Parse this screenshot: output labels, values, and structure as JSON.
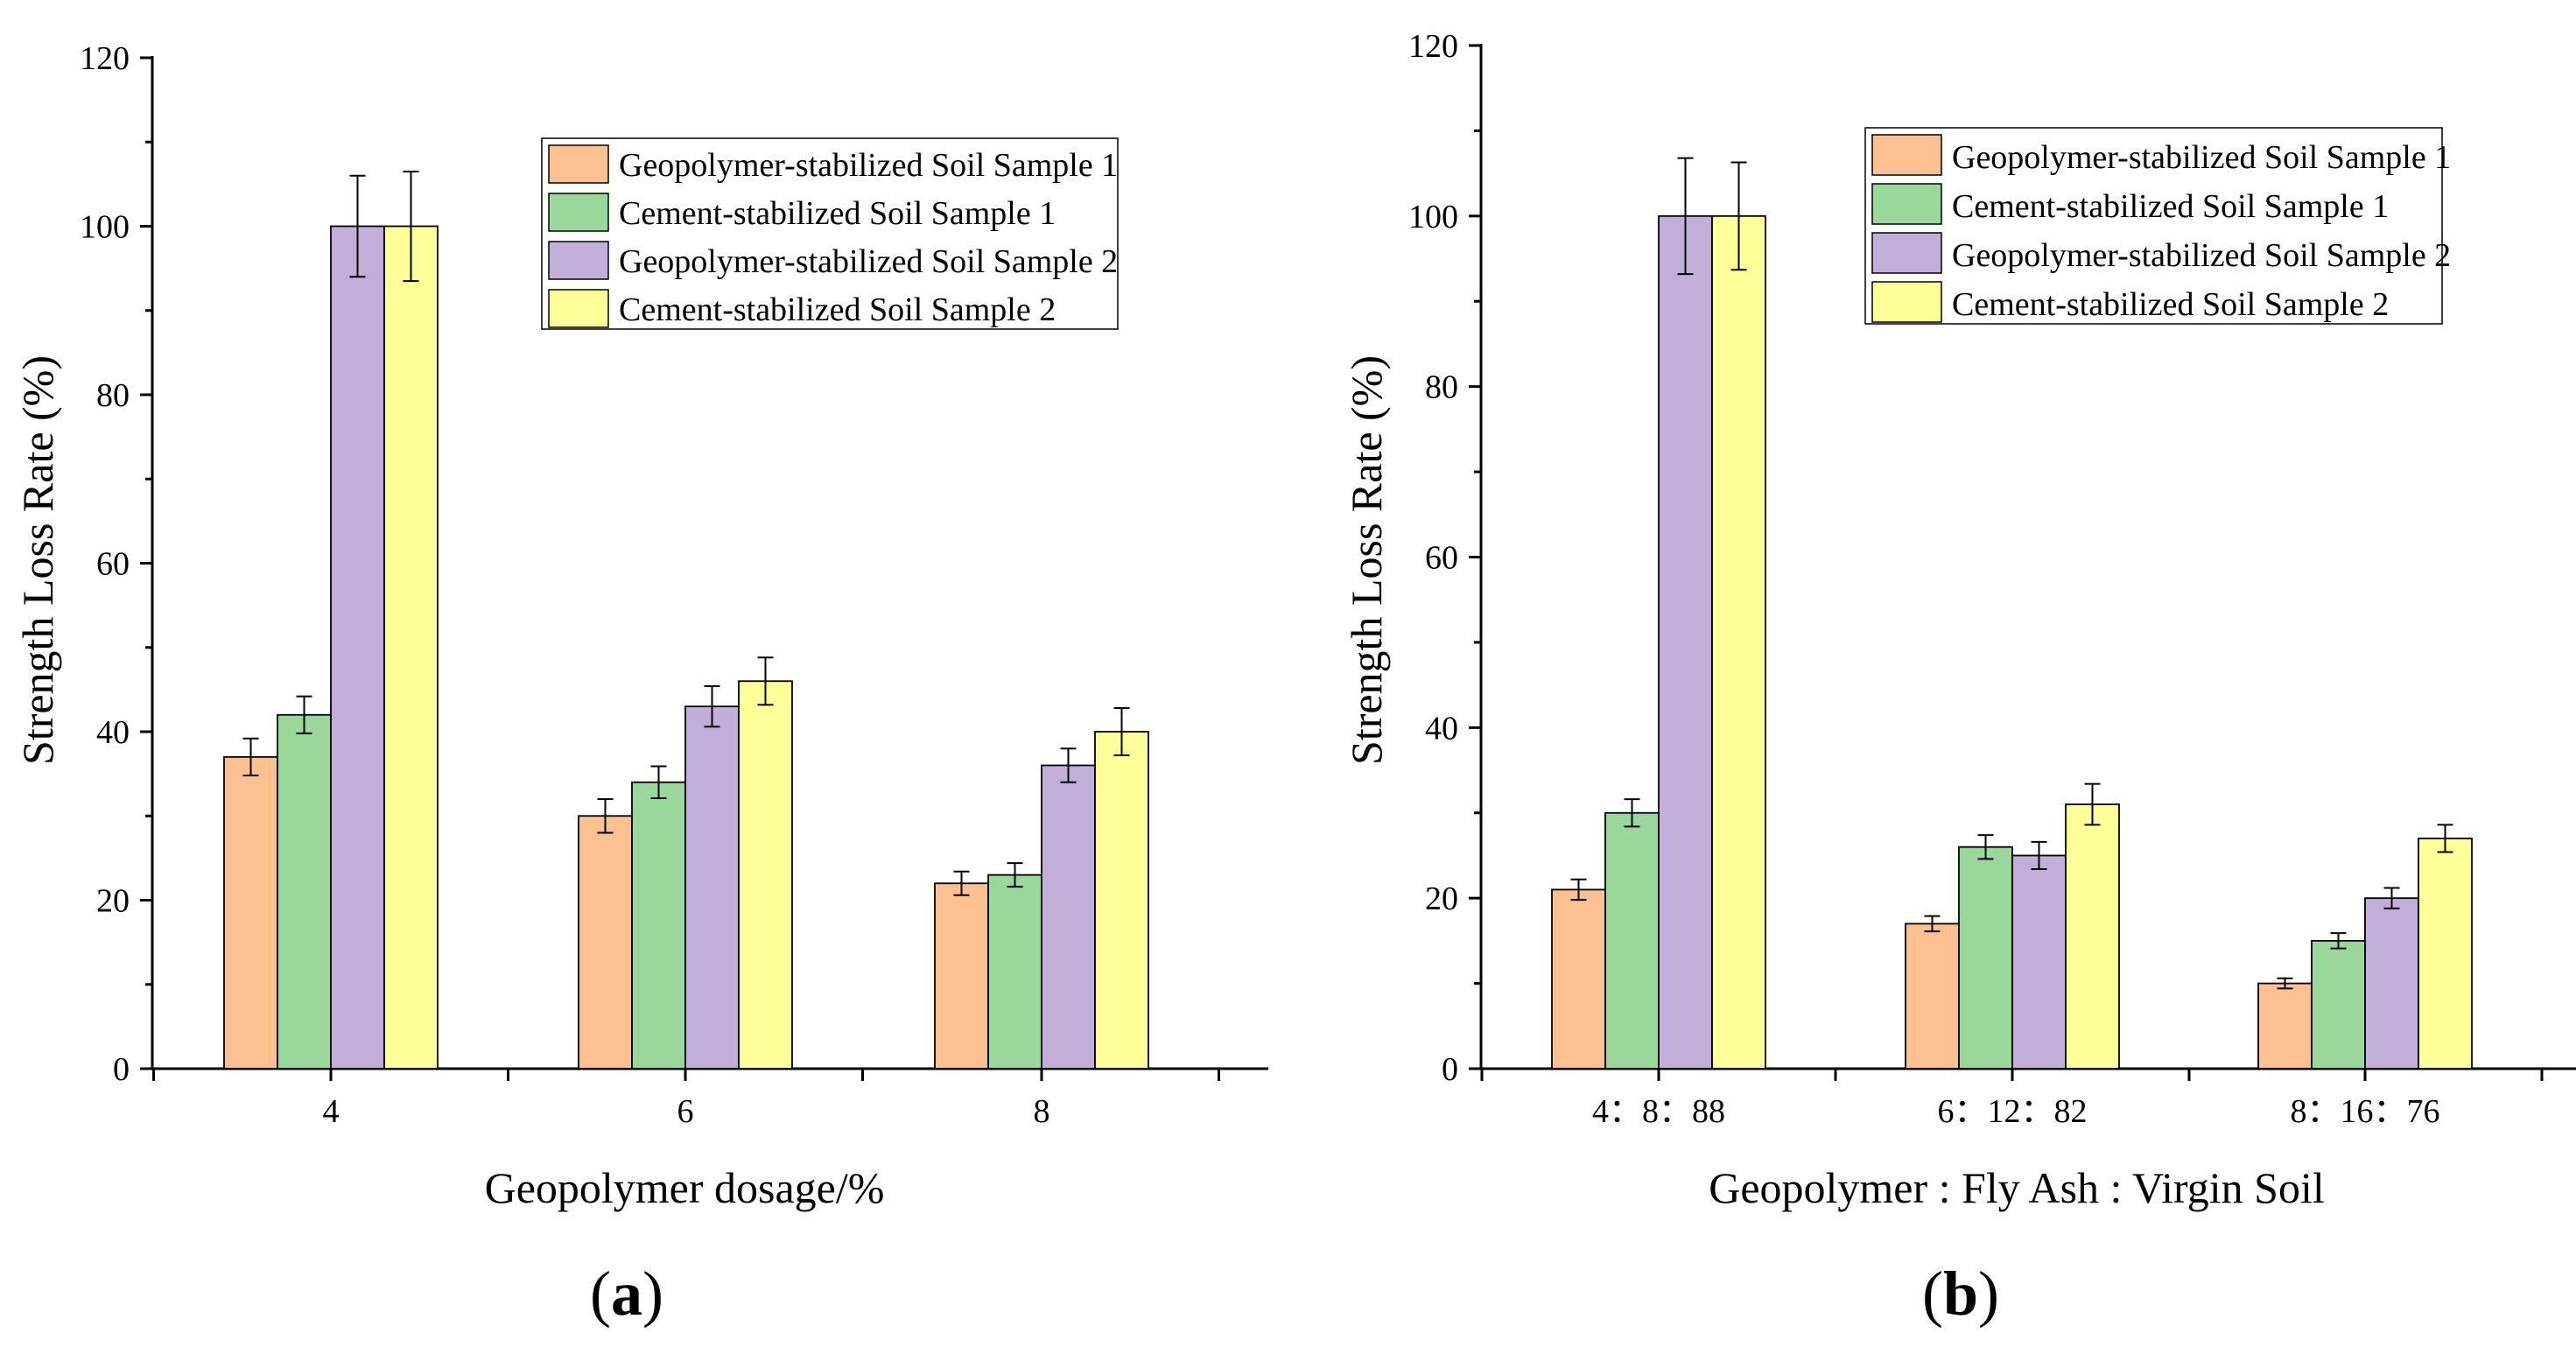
{
  "colors": {
    "series": [
      "#FDC091",
      "#99D79B",
      "#C1AFD9",
      "#FFFF99"
    ],
    "bar_stroke": "#000000",
    "axis": "#000000"
  },
  "chart_data": [
    {
      "type": "bar",
      "panel_label": "a",
      "xlabel": "Geopolymer dosage/%",
      "ylabel": "Strength Loss Rate (%)",
      "ylim": [
        0,
        120
      ],
      "yticks": [
        "0",
        "20",
        "40",
        "60",
        "80",
        "100",
        "120"
      ],
      "categories": [
        "4",
        "6",
        "8"
      ],
      "legend_position": "top-right",
      "series": [
        {
          "name": "Geopolymer-stabilized Soil Sample 1",
          "values": [
            37,
            30,
            22
          ],
          "errors": [
            2.2,
            2.0,
            1.4
          ]
        },
        {
          "name": "Cement-stabilized Soil Sample 1",
          "values": [
            42,
            34,
            23
          ],
          "errors": [
            2.2,
            1.9,
            1.4
          ]
        },
        {
          "name": "Geopolymer-stabilized Soil Sample 2",
          "values": [
            100,
            43,
            36
          ],
          "errors": [
            6.0,
            2.4,
            2.0
          ]
        },
        {
          "name": "Cement-stabilized Soil Sample 2",
          "values": [
            100,
            46,
            40
          ],
          "errors": [
            6.5,
            2.8,
            2.8
          ]
        }
      ]
    },
    {
      "type": "bar",
      "panel_label": "b",
      "xlabel": "Geopolymer : Fly Ash : Virgin Soil",
      "ylabel": "Strength Loss Rate (%)",
      "ylim": [
        0,
        120
      ],
      "yticks": [
        "0",
        "20",
        "40",
        "60",
        "80",
        "100",
        "120"
      ],
      "categories": [
        "4：8：88",
        "6：12：82",
        "8：16：76"
      ],
      "legend_position": "top-right",
      "series": [
        {
          "name": "Geopolymer-stabilized Soil Sample 1",
          "values": [
            21,
            17,
            10
          ],
          "errors": [
            1.2,
            0.9,
            0.6
          ]
        },
        {
          "name": "Cement-stabilized Soil Sample 1",
          "values": [
            30,
            26,
            15
          ],
          "errors": [
            1.6,
            1.4,
            0.9
          ]
        },
        {
          "name": "Geopolymer-stabilized Soil Sample 2",
          "values": [
            100,
            25,
            20
          ],
          "errors": [
            6.8,
            1.6,
            1.2
          ]
        },
        {
          "name": "Cement-stabilized Soil Sample 2",
          "values": [
            100,
            31,
            27
          ],
          "errors": [
            6.3,
            2.4,
            1.6
          ]
        }
      ]
    }
  ]
}
